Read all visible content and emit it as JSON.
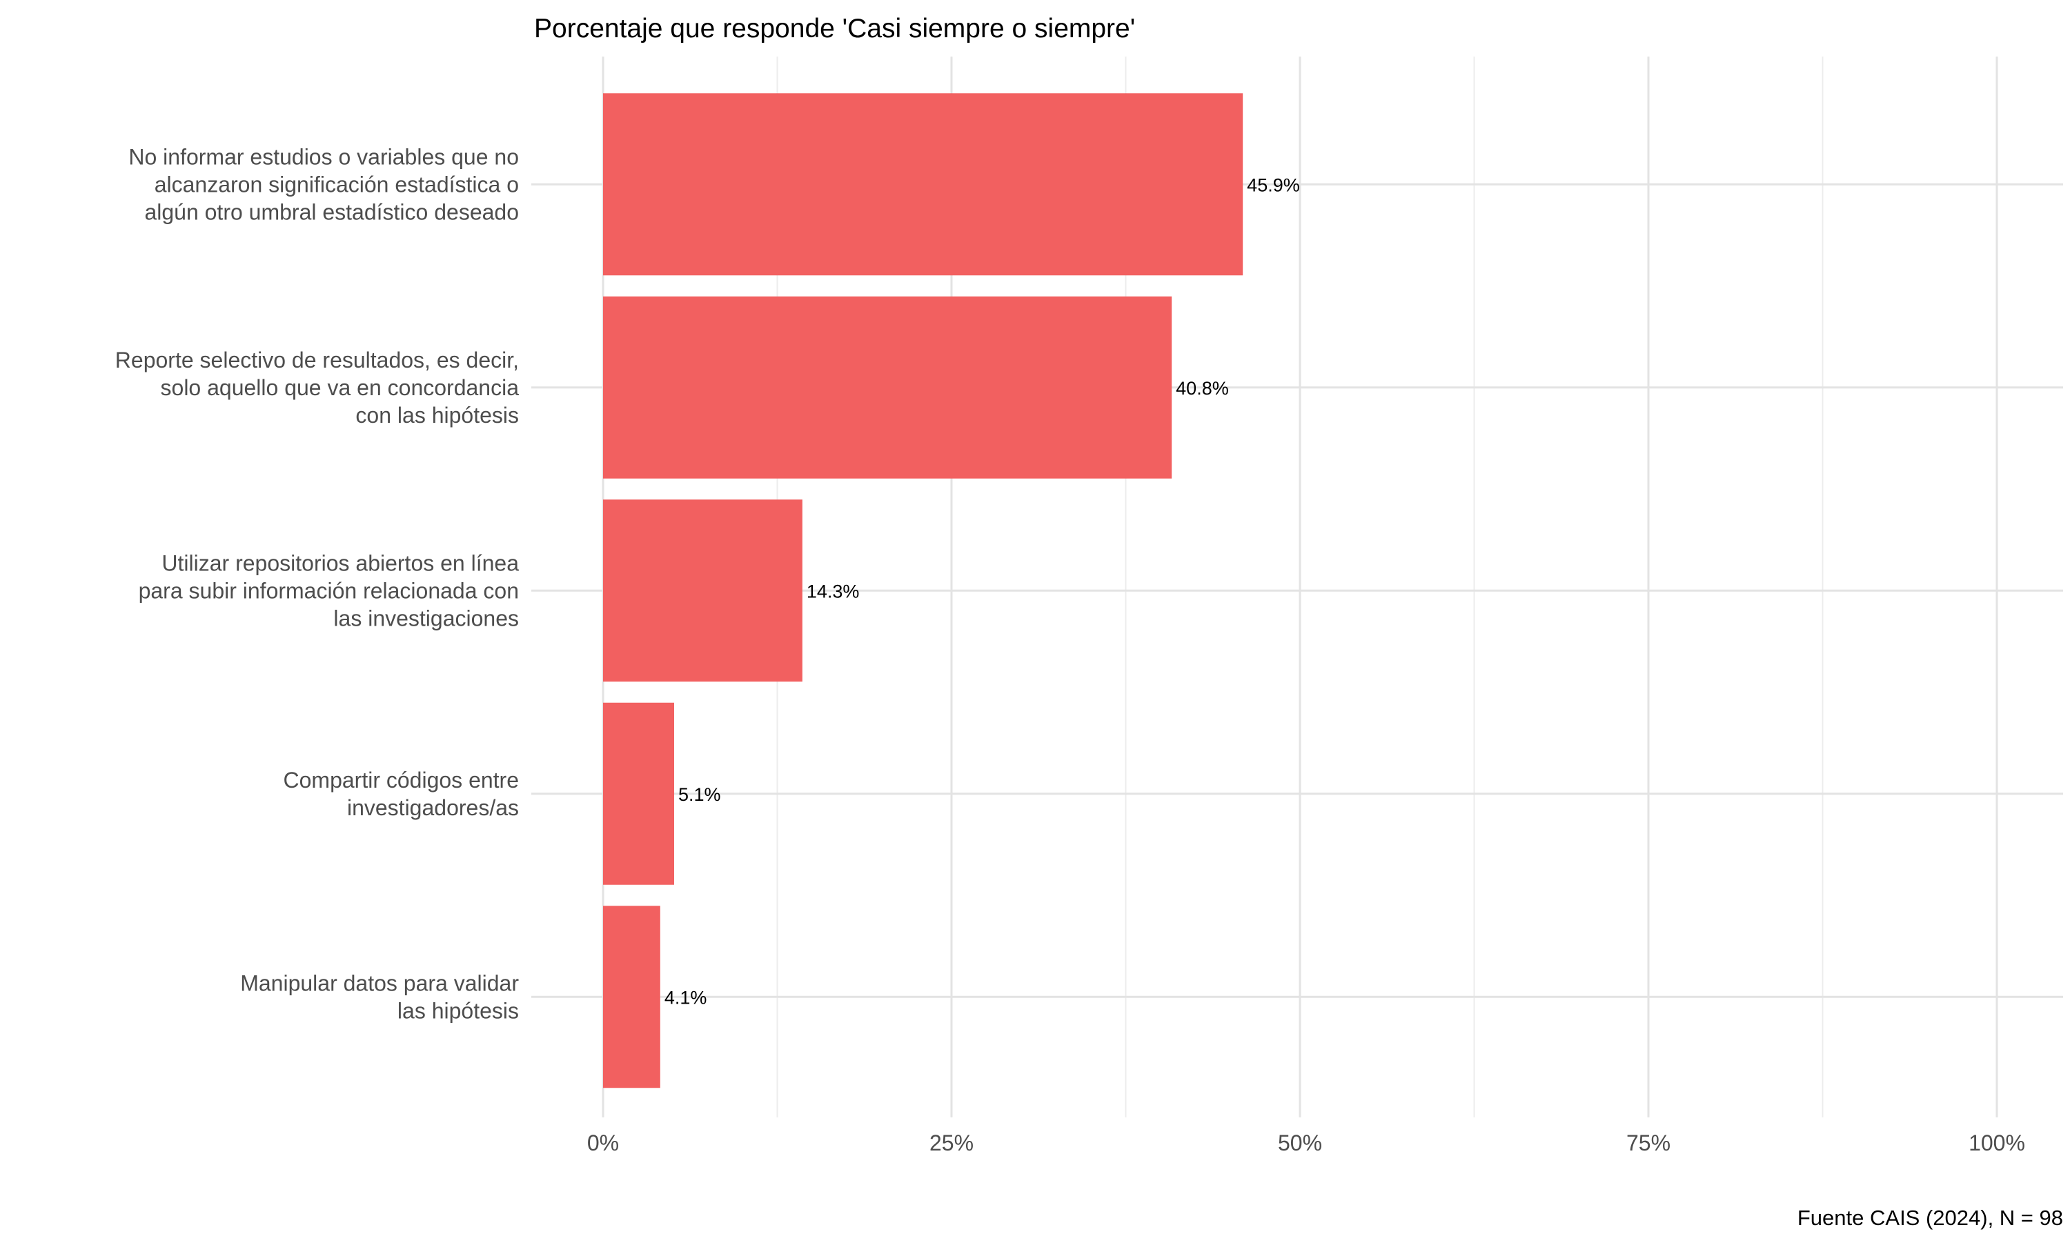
{
  "chart_data": {
    "type": "bar",
    "orientation": "horizontal",
    "title": "Porcentaje que responde 'Casi siempre o siempre'",
    "caption": "Fuente CAIS (2024), N = 98",
    "xlim": [
      0,
      100
    ],
    "x_ticks": [
      0,
      25,
      50,
      75,
      100
    ],
    "x_tick_labels": [
      "0%",
      "25%",
      "50%",
      "75%",
      "100%"
    ],
    "grid": true,
    "bar_color": "#F26060",
    "categories": [
      [
        "No informar estudios o variables que no",
        "alcanzaron significación estadística o",
        "algún otro umbral estadístico deseado"
      ],
      [
        "Reporte selectivo de resultados, es decir,",
        "solo aquello que va en concordancia",
        "con las hipótesis"
      ],
      [
        "Utilizar repositorios abiertos en línea",
        "para subir información relacionada con",
        "las investigaciones"
      ],
      [
        "Compartir códigos entre",
        "investigadores/as"
      ],
      [
        "Manipular datos para validar",
        "las hipótesis"
      ]
    ],
    "values": [
      45.9,
      40.8,
      14.3,
      5.1,
      4.1
    ],
    "value_labels": [
      "45.9%",
      "40.8%",
      "14.3%",
      "5.1%",
      "4.1%"
    ]
  }
}
